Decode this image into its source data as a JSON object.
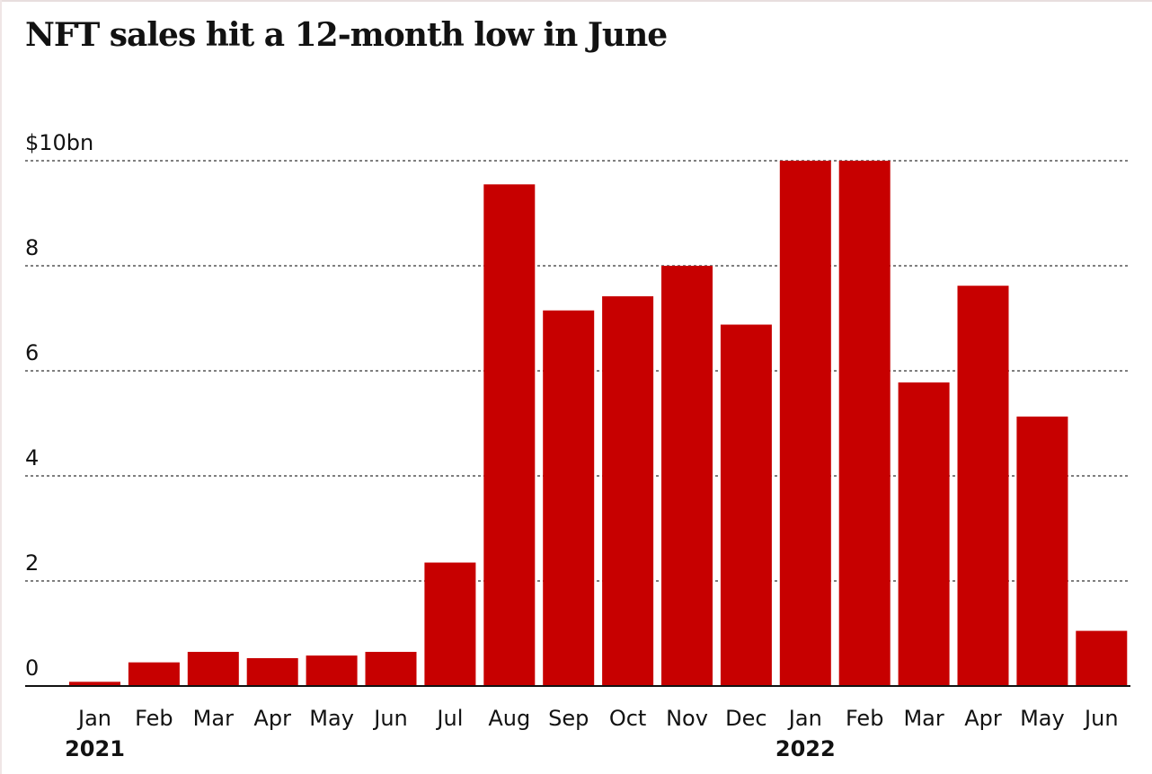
{
  "title": "NFT sales hit a 12-month low in June",
  "chart_data": {
    "type": "bar",
    "title": "NFT sales hit a 12-month low in June",
    "xlabel": "",
    "ylabel": "",
    "categories": [
      "Jan",
      "Feb",
      "Mar",
      "Apr",
      "May",
      "Jun",
      "Jul",
      "Aug",
      "Sep",
      "Oct",
      "Nov",
      "Dec",
      "Jan",
      "Feb",
      "Mar",
      "Apr",
      "May",
      "Jun"
    ],
    "year_labels": [
      {
        "label": "2021",
        "category_index": 0
      },
      {
        "label": "2022",
        "category_index": 12
      }
    ],
    "values": [
      0.08,
      0.45,
      0.65,
      0.53,
      0.58,
      0.65,
      2.35,
      9.55,
      7.15,
      7.42,
      8.0,
      6.88,
      10.0,
      10.0,
      5.78,
      7.62,
      5.13,
      1.05
    ],
    "ylim": [
      0,
      10
    ],
    "yticks": [
      0,
      2,
      4,
      6,
      8,
      10
    ],
    "ytick_labels": [
      "0",
      "2",
      "4",
      "6",
      "8",
      "$10bn"
    ],
    "grid": true,
    "legend": "none",
    "bar_color": "#c70000"
  }
}
